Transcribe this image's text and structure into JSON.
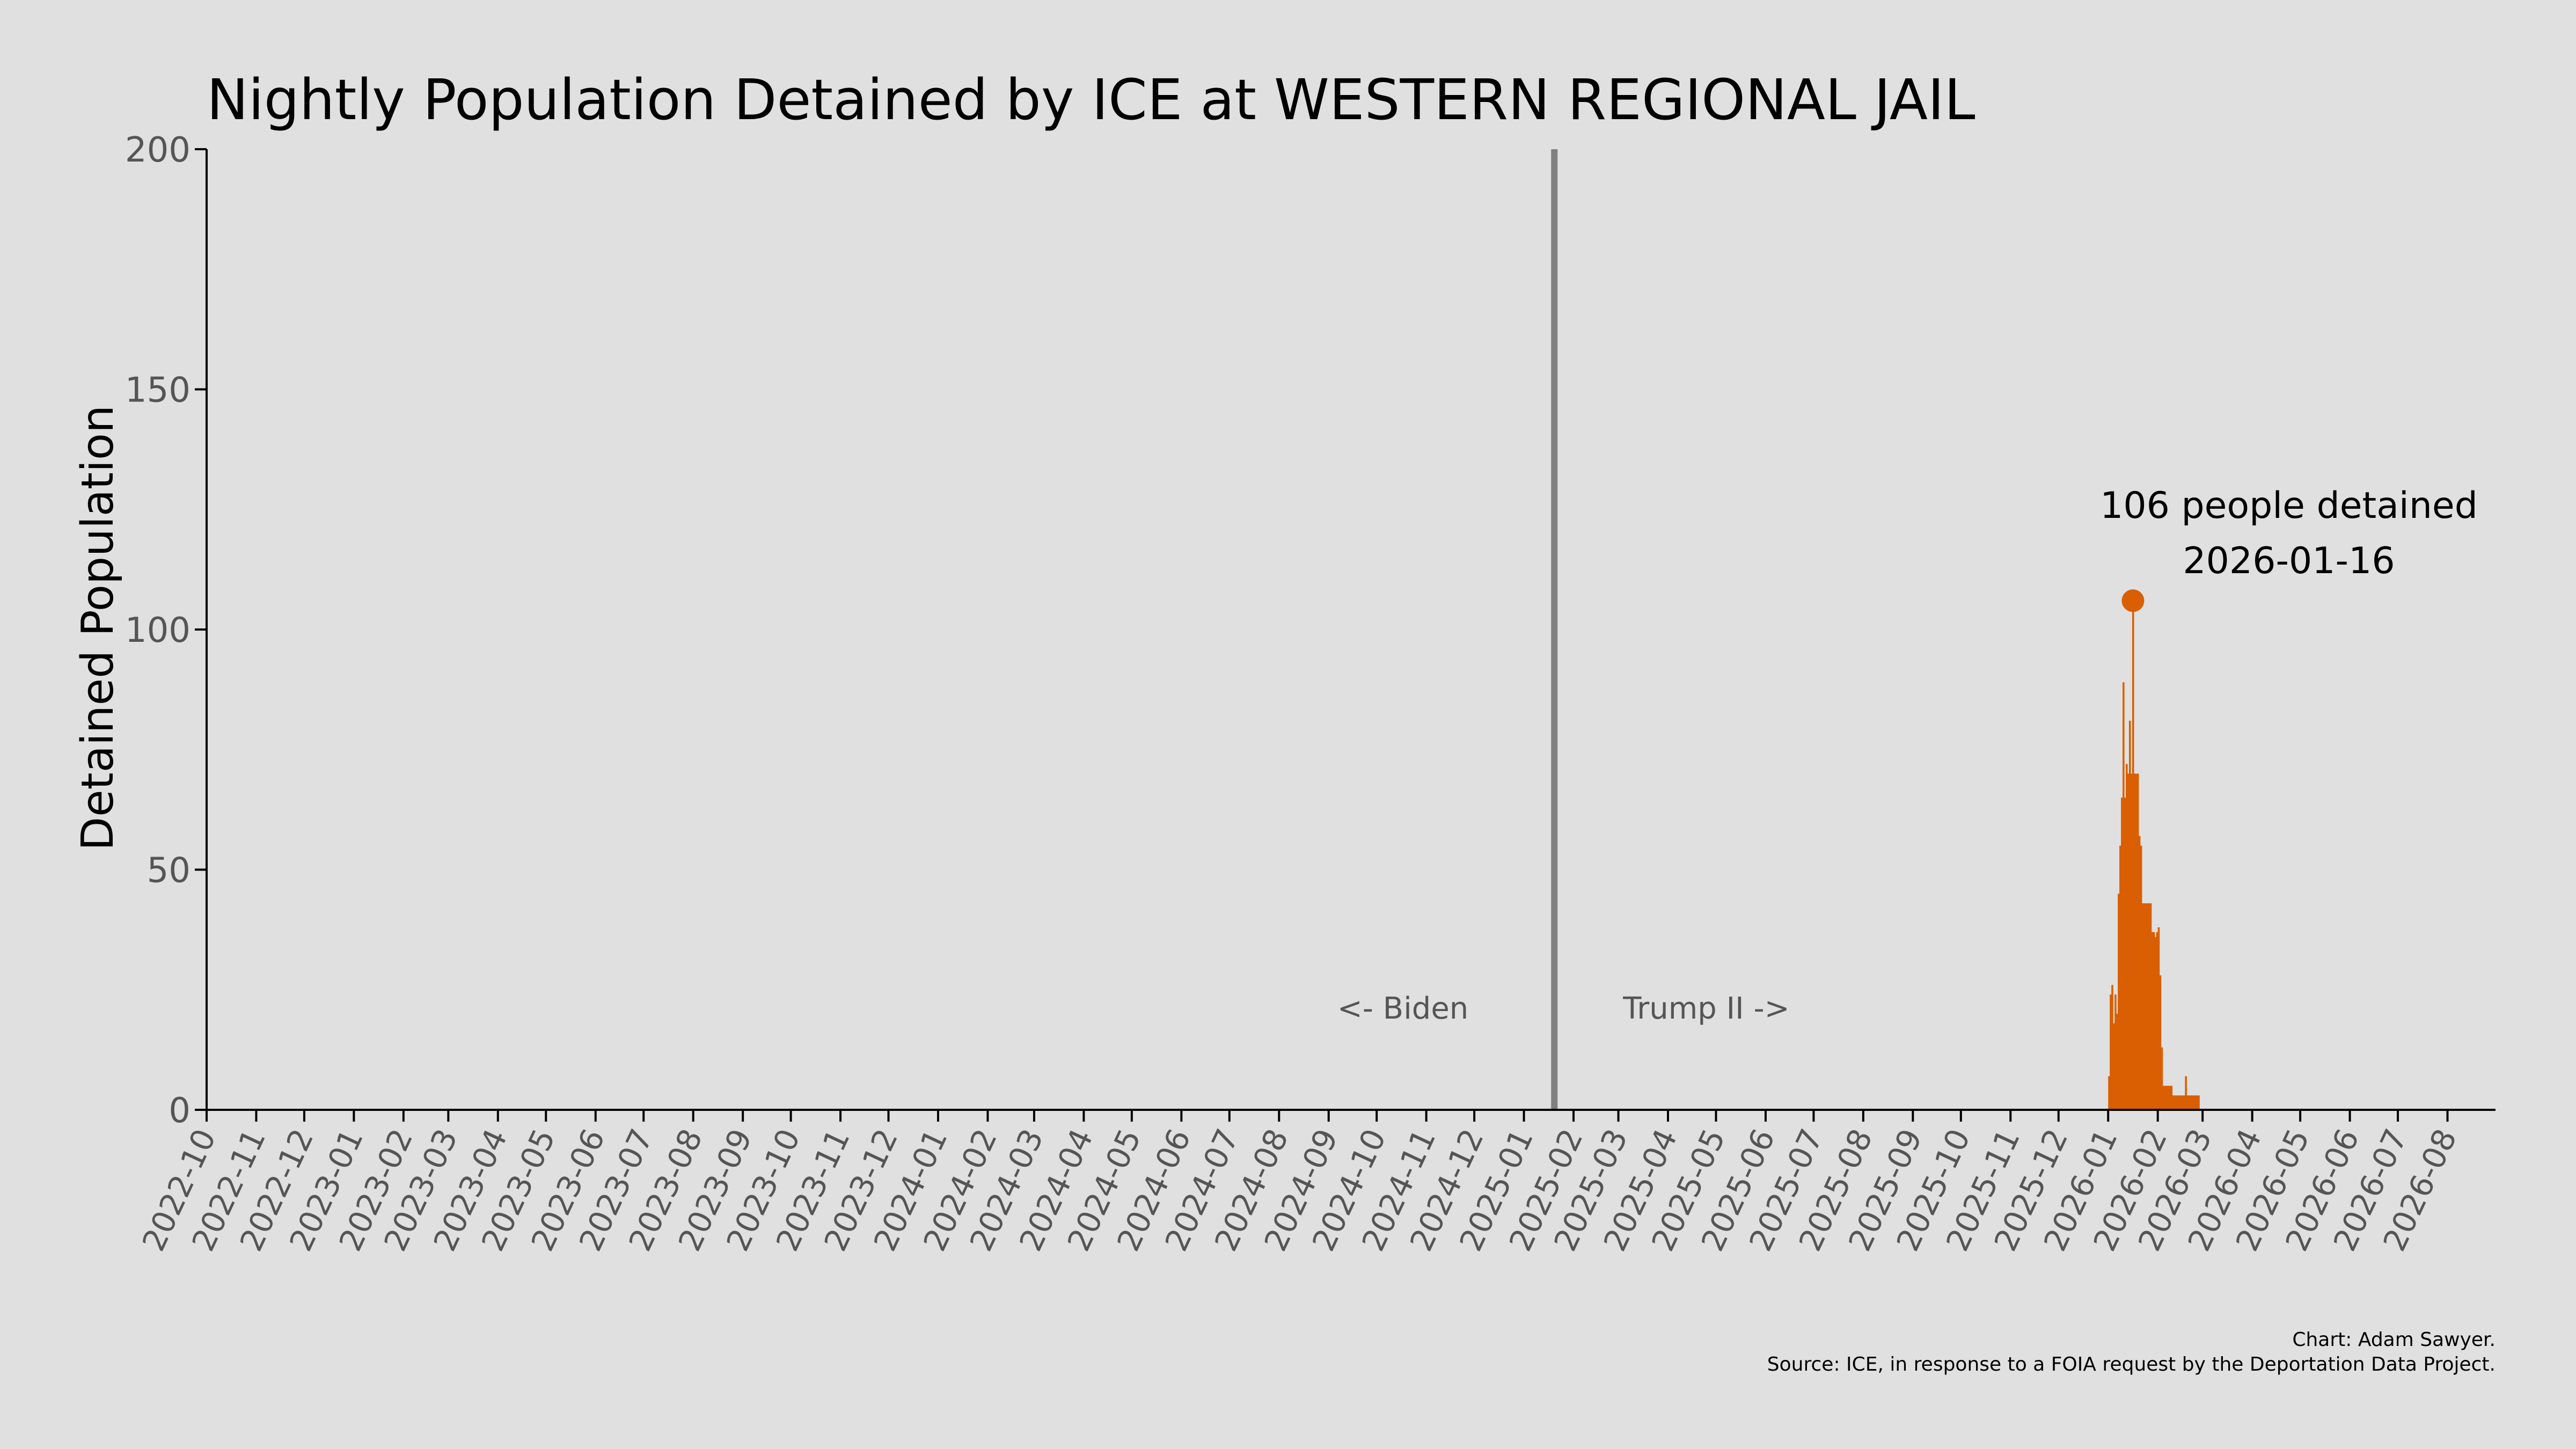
{
  "chart_data": {
    "type": "area",
    "title": "Nightly Population Detained by ICE at WESTERN REGIONAL JAIL",
    "xlabel": "",
    "ylabel": "Detained Population",
    "ylim": [
      0,
      200
    ],
    "yticks": [
      0,
      50,
      100,
      150,
      200
    ],
    "xlim": [
      "2022-10-01",
      "2026-08-31"
    ],
    "xticks": [
      "2022-10",
      "2022-11",
      "2022-12",
      "2023-01",
      "2023-02",
      "2023-03",
      "2023-04",
      "2023-05",
      "2023-06",
      "2023-07",
      "2023-08",
      "2023-09",
      "2023-10",
      "2023-11",
      "2023-12",
      "2024-01",
      "2024-02",
      "2024-03",
      "2024-04",
      "2024-05",
      "2024-06",
      "2024-07",
      "2024-08",
      "2024-09",
      "2024-10",
      "2024-11",
      "2024-12",
      "2025-01",
      "2025-02",
      "2025-03",
      "2025-04",
      "2025-05",
      "2025-06",
      "2025-07",
      "2025-08",
      "2025-09",
      "2025-10",
      "2025-11",
      "2025-12",
      "2026-01",
      "2026-02",
      "2026-03",
      "2026-04",
      "2026-05",
      "2026-06",
      "2026-07",
      "2026-08"
    ],
    "grid": false,
    "legend": "none",
    "series_color": "#d95f02",
    "divider": {
      "date": "2025-01-20",
      "left_label": "<- Biden",
      "right_label": "Trump II ->",
      "color": "#808080"
    },
    "peak": {
      "date": "2026-01-16",
      "value": 106,
      "label_line1": "106 people detained",
      "label_line2": "2026-01-16"
    },
    "series": [
      {
        "x": [
          "2026-01-01",
          "2026-01-02",
          "2026-01-03",
          "2026-01-04",
          "2026-01-05",
          "2026-01-06",
          "2026-01-07",
          "2026-01-08",
          "2026-01-09",
          "2026-01-10",
          "2026-01-11",
          "2026-01-12",
          "2026-01-13",
          "2026-01-14",
          "2026-01-15",
          "2026-01-16",
          "2026-01-17",
          "2026-01-18",
          "2026-01-19",
          "2026-01-20",
          "2026-01-21",
          "2026-01-22",
          "2026-01-23",
          "2026-01-24",
          "2026-01-25",
          "2026-01-26",
          "2026-01-27",
          "2026-01-28",
          "2026-01-29",
          "2026-01-30",
          "2026-01-31",
          "2026-02-01",
          "2026-02-02",
          "2026-02-03",
          "2026-02-04",
          "2026-02-05",
          "2026-02-06",
          "2026-02-07",
          "2026-02-08",
          "2026-02-09",
          "2026-02-10",
          "2026-02-11",
          "2026-02-12",
          "2026-02-13",
          "2026-02-14",
          "2026-02-15",
          "2026-02-16",
          "2026-02-17",
          "2026-02-18",
          "2026-02-19",
          "2026-02-20",
          "2026-02-21",
          "2026-02-22",
          "2026-02-23",
          "2026-02-24",
          "2026-02-25",
          "2026-02-26",
          "2026-02-27"
        ],
        "values": [
          7,
          24,
          26,
          18,
          24,
          20,
          45,
          55,
          65,
          89,
          65,
          72,
          70,
          81,
          70,
          106,
          70,
          70,
          70,
          57,
          55,
          43,
          43,
          43,
          43,
          43,
          43,
          37,
          37,
          36,
          37,
          38,
          28,
          13,
          5,
          5,
          5,
          5,
          5,
          5,
          3,
          3,
          3,
          3,
          3,
          3,
          3,
          3,
          7,
          3,
          3,
          3,
          3,
          3,
          3,
          3,
          3,
          0
        ]
      }
    ]
  },
  "credits": {
    "line1": "Chart: Adam Sawyer.",
    "line2": "Source: ICE, in response to a FOIA request by the Deportation Data Project."
  }
}
